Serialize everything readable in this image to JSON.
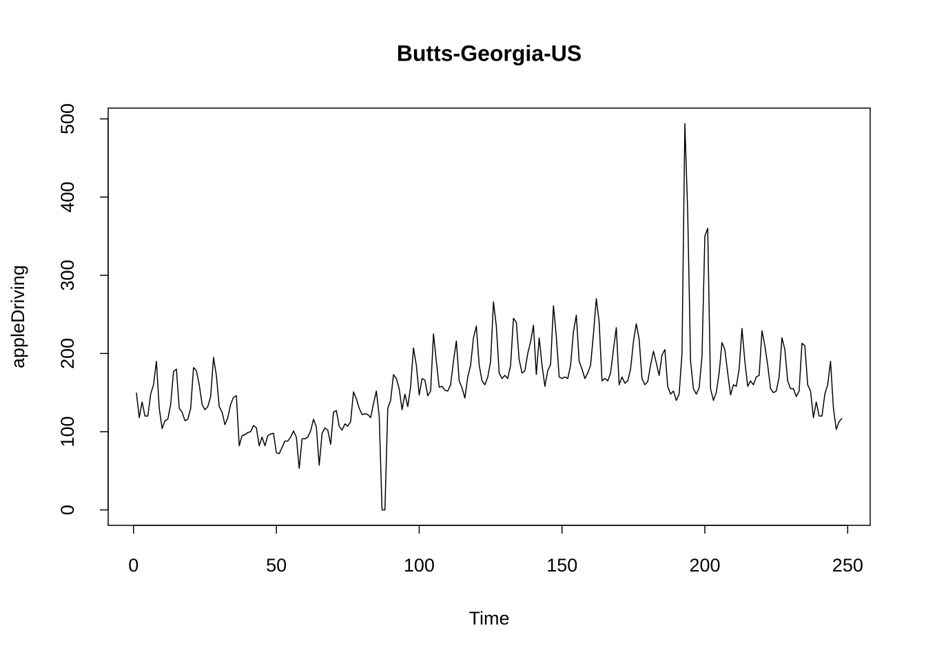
{
  "chart_data": {
    "type": "line",
    "title": "Butts-Georgia-US",
    "x_label": "Time",
    "y_label": "appleDriving",
    "color": "#000000",
    "x": [
      1,
      2,
      3,
      4,
      5,
      6,
      7,
      8,
      9,
      10,
      11,
      12,
      13,
      14,
      15,
      16,
      17,
      18,
      19,
      20,
      21,
      22,
      23,
      24,
      25,
      26,
      27,
      28,
      29,
      30,
      31,
      32,
      33,
      34,
      35,
      36,
      37,
      38,
      39,
      40,
      41,
      42,
      43,
      44,
      45,
      46,
      47,
      48,
      49,
      50,
      51,
      52,
      53,
      54,
      55,
      56,
      57,
      58,
      59,
      60,
      61,
      62,
      63,
      64,
      65,
      66,
      67,
      68,
      69,
      70,
      71,
      72,
      73,
      74,
      75,
      76,
      77,
      78,
      79,
      80,
      81,
      82,
      83,
      84,
      85,
      86,
      87,
      88,
      89,
      90,
      91,
      92,
      93,
      94,
      95,
      96,
      97,
      98,
      99,
      100,
      101,
      102,
      103,
      104,
      105,
      106,
      107,
      108,
      109,
      110,
      111,
      112,
      113,
      114,
      115,
      116,
      117,
      118,
      119,
      120,
      121,
      122,
      123,
      124,
      125,
      126,
      127,
      128,
      129,
      130,
      131,
      132,
      133,
      134,
      135,
      136,
      137,
      138,
      139,
      140,
      141,
      142,
      143,
      144,
      145,
      146,
      147,
      148,
      149,
      150,
      151,
      152,
      153,
      154,
      155,
      156,
      157,
      158,
      159,
      160,
      161,
      162,
      163,
      164,
      165,
      166,
      167,
      168,
      169,
      170,
      171,
      172,
      173,
      174,
      175,
      176,
      177,
      178,
      179,
      180,
      181,
      182,
      183,
      184,
      185,
      186,
      187,
      188,
      189,
      190,
      191,
      192,
      193,
      194,
      195,
      196,
      197,
      198,
      199,
      200,
      201,
      202,
      203,
      204,
      205,
      206,
      207,
      208,
      209,
      210,
      211,
      212,
      213,
      214,
      215,
      216,
      217,
      218,
      219,
      220,
      221,
      222,
      223,
      224,
      225,
      226,
      227,
      228,
      229,
      230,
      231,
      232,
      233,
      234,
      235,
      236,
      237,
      238,
      239,
      240,
      241,
      242,
      243,
      244,
      245,
      246,
      247,
      248
    ],
    "values": [
      150,
      118,
      138,
      120,
      120,
      148,
      160,
      190,
      130,
      104,
      114,
      116,
      135,
      177,
      180,
      130,
      125,
      114,
      116,
      130,
      182,
      178,
      160,
      135,
      128,
      132,
      145,
      195,
      172,
      132,
      125,
      109,
      118,
      135,
      144,
      146,
      82,
      95,
      96,
      99,
      100,
      108,
      105,
      82,
      93,
      82,
      95,
      97,
      98,
      73,
      72,
      80,
      88,
      88,
      93,
      101,
      93,
      53,
      91,
      91,
      93,
      101,
      116,
      106,
      57,
      98,
      105,
      102,
      84,
      125,
      127,
      107,
      102,
      110,
      107,
      113,
      151,
      142,
      130,
      122,
      123,
      122,
      118,
      136,
      152,
      120,
      0,
      0,
      130,
      140,
      173,
      168,
      155,
      128,
      148,
      132,
      158,
      207,
      185,
      147,
      168,
      166,
      146,
      152,
      225,
      190,
      157,
      158,
      153,
      152,
      160,
      190,
      216,
      165,
      156,
      143,
      170,
      185,
      220,
      235,
      185,
      165,
      160,
      170,
      190,
      266,
      235,
      175,
      168,
      172,
      168,
      185,
      245,
      240,
      192,
      175,
      178,
      200,
      215,
      236,
      173,
      220,
      185,
      158,
      178,
      186,
      261,
      222,
      170,
      168,
      170,
      168,
      185,
      228,
      249,
      190,
      180,
      168,
      175,
      185,
      225,
      270,
      240,
      165,
      168,
      165,
      175,
      205,
      233,
      160,
      170,
      162,
      165,
      180,
      215,
      238,
      218,
      168,
      160,
      164,
      185,
      203,
      188,
      172,
      198,
      205,
      158,
      148,
      152,
      140,
      148,
      200,
      494,
      380,
      190,
      155,
      148,
      156,
      196,
      350,
      360,
      155,
      140,
      150,
      175,
      214,
      205,
      175,
      147,
      160,
      158,
      180,
      232,
      190,
      158,
      165,
      160,
      170,
      172,
      229,
      210,
      185,
      155,
      150,
      152,
      170,
      220,
      205,
      165,
      155,
      155,
      145,
      152,
      213,
      210,
      160,
      152,
      118,
      138,
      120,
      120,
      148,
      160,
      190,
      130,
      103,
      113,
      117
    ],
    "xlim": [
      -8.88,
      257.88
    ],
    "ylim": [
      -19.76,
      513.76
    ],
    "xticks": [
      0,
      50,
      100,
      150,
      200,
      250
    ],
    "yticks": [
      0,
      100,
      200,
      300,
      400,
      500
    ]
  }
}
